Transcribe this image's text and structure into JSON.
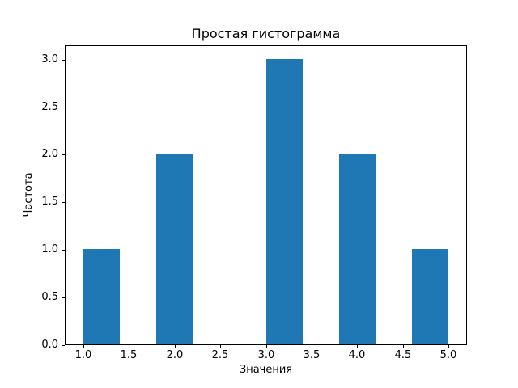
{
  "chart_data": {
    "type": "bar",
    "chart_kind": "histogram",
    "title": "Простая гистограмма",
    "xlabel": "Значения",
    "ylabel": "Частота",
    "bar_color": "#1f77b4",
    "axis_color": "#000000",
    "background_color": "#ffffff",
    "grid": false,
    "legend": null,
    "xlim": [
      0.8,
      5.2
    ],
    "ylim": [
      0,
      3.15
    ],
    "xticks": [
      {
        "value": 1.0,
        "label": "1.0"
      },
      {
        "value": 1.5,
        "label": "1.5"
      },
      {
        "value": 2.0,
        "label": "2.0"
      },
      {
        "value": 2.5,
        "label": "2.5"
      },
      {
        "value": 3.0,
        "label": "3.0"
      },
      {
        "value": 3.5,
        "label": "3.5"
      },
      {
        "value": 4.0,
        "label": "4.0"
      },
      {
        "value": 4.5,
        "label": "4.5"
      },
      {
        "value": 5.0,
        "label": "5.0"
      }
    ],
    "yticks": [
      {
        "value": 0.0,
        "label": "0.0"
      },
      {
        "value": 0.5,
        "label": "0.5"
      },
      {
        "value": 1.0,
        "label": "1.0"
      },
      {
        "value": 1.5,
        "label": "1.5"
      },
      {
        "value": 2.0,
        "label": "2.0"
      },
      {
        "value": 2.5,
        "label": "2.5"
      },
      {
        "value": 3.0,
        "label": "3.0"
      }
    ],
    "bars": [
      {
        "x_start": 1.0,
        "x_end": 1.4,
        "center": 1.2,
        "height": 1
      },
      {
        "x_start": 1.8,
        "x_end": 2.2,
        "center": 2.0,
        "height": 2
      },
      {
        "x_start": 3.0,
        "x_end": 3.4,
        "center": 3.2,
        "height": 3
      },
      {
        "x_start": 3.8,
        "x_end": 4.2,
        "center": 4.0,
        "height": 2
      },
      {
        "x_start": 4.6,
        "x_end": 5.0,
        "center": 4.8,
        "height": 1
      }
    ]
  }
}
